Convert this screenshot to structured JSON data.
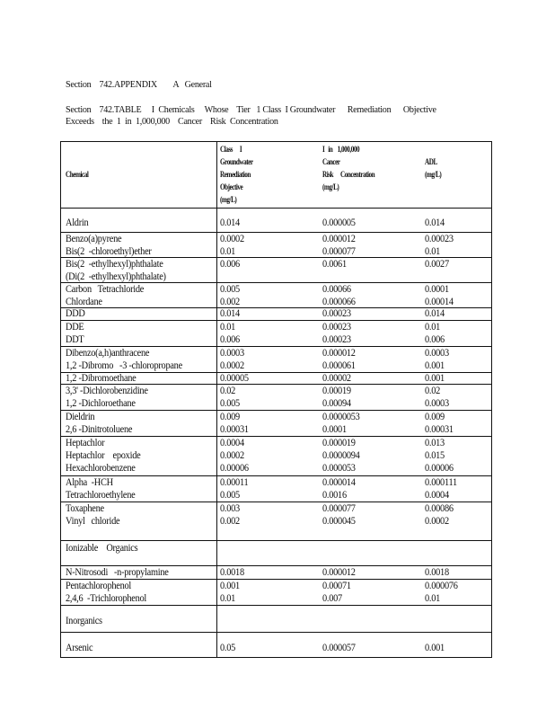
{
  "heading": "Section    742.APPENDIX        A   General",
  "caption_line1": "Section    742.TABLE     I  Chemicals     Whose    Tier   1 Class  I Groundwater      Remediation      Objective",
  "caption_line2": "Exceeds    the  1  in  1,000,000    Cancer    Risk  Concentration",
  "table": {
    "headers": [
      [
        "Chemical"
      ],
      [
        "Class      I",
        "Groundwater",
        "Remediation",
        "Objective",
        "(mg/L)"
      ],
      [
        "I   in    1,000,000",
        "Cancer",
        "Risk      Concentration",
        "(mg/L)"
      ],
      [
        "ADL",
        "(mg/L)"
      ]
    ],
    "groups": [
      {
        "rows": [
          [
            "Aldrin",
            "0.014",
            "0.000005",
            "0.014"
          ]
        ]
      },
      {
        "rows": [
          [
            "Benzo(a)pyrene",
            "0.0002",
            "0.000012",
            "0.00023"
          ],
          [
            "Bis(2  -chloroethyl)ether",
            "0.01",
            "0.000077",
            "0.01"
          ]
        ]
      },
      {
        "rows": [
          [
            "Bis(2  -ethylhexyl)phthalate",
            "0.006",
            "0.0061",
            "0.0027"
          ],
          [
            "(Di(2  -ethylhexyl)phthalate)",
            "",
            "",
            ""
          ]
        ]
      },
      {
        "rows": [
          [
            "Carbon   Tetrachloride",
            "0.005",
            "0.00066",
            "0.0001"
          ],
          [
            "Chlordane",
            "0.002",
            "0.000066",
            "0.00014"
          ]
        ]
      },
      {
        "rows": [
          [
            "DDD",
            "0.014",
            "0.00023",
            "0.014"
          ]
        ]
      },
      {
        "rows": [
          [
            "DDE",
            "0.01",
            "0.00023",
            "0.01"
          ],
          [
            "DDT",
            "0.006",
            "0.00023",
            "0.006"
          ]
        ]
      },
      {
        "rows": [
          [
            "Dibenzo(a,h)anthracene",
            "0.0003",
            "0.000012",
            "0.0003"
          ],
          [
            "1,2 -Dibromo   -3 -chloropropane",
            "0.0002",
            "0.000061",
            "0.001"
          ]
        ]
      },
      {
        "rows": [
          [
            "1,2 -Dibromoethane",
            "0.00005",
            "0.00002",
            "0.001"
          ]
        ]
      },
      {
        "rows": [
          [
            "3,3' -Dichlorobenzidine",
            "0.02",
            "0.00019",
            "0.02"
          ],
          [
            "1,2 -Dichloroethane",
            "0.005",
            "0.00094",
            "0.0003"
          ]
        ]
      },
      {
        "rows": [
          [
            "Dieldrin",
            "0.009",
            "0.0000053",
            "0.009"
          ],
          [
            "2,6 -Dinitrotoluene",
            "0.00031",
            "0.0001",
            "0.00031"
          ]
        ]
      },
      {
        "rows": [
          [
            "Heptachlor",
            "0.0004",
            "0.000019",
            "0.013"
          ],
          [
            "Heptachlor    epoxide",
            "0.0002",
            "0.0000094",
            "0.015"
          ],
          [
            "Hexachlorobenzene",
            "0.00006",
            "0.000053",
            "0.00006"
          ]
        ]
      },
      {
        "rows": [
          [
            "Alpha  -HCH",
            "0.00011",
            "0.000014",
            "0.000111"
          ],
          [
            "Tetrachloroethylene",
            "0.005",
            "0.0016",
            "0.0004"
          ]
        ]
      },
      {
        "rows": [
          [
            "Toxaphene",
            "0.003",
            "0.000077",
            "0.00086"
          ],
          [
            "Vinyl   chloride",
            "0.002",
            "0.000045",
            "0.0002"
          ]
        ]
      },
      {
        "rows": [
          [
            "Ionizable    Organics",
            "",
            "",
            ""
          ]
        ]
      },
      {
        "rows": [
          [
            "N-Nitrosodi   -n-propylamine",
            "0.0018",
            "0.000012",
            "0.0018"
          ]
        ]
      },
      {
        "rows": [
          [
            "Pentachlorophenol",
            "0.001",
            "0.00071",
            "0.000076"
          ],
          [
            "2,4,6  -Trichlorophenol",
            "0.01",
            "0.007",
            "0.01"
          ]
        ]
      },
      {
        "rows": [
          [
            "Inorganics",
            "",
            "",
            ""
          ]
        ]
      },
      {
        "rows": [
          [
            "Arsenic",
            "0.05",
            "0.000057",
            "0.001"
          ]
        ]
      }
    ]
  }
}
